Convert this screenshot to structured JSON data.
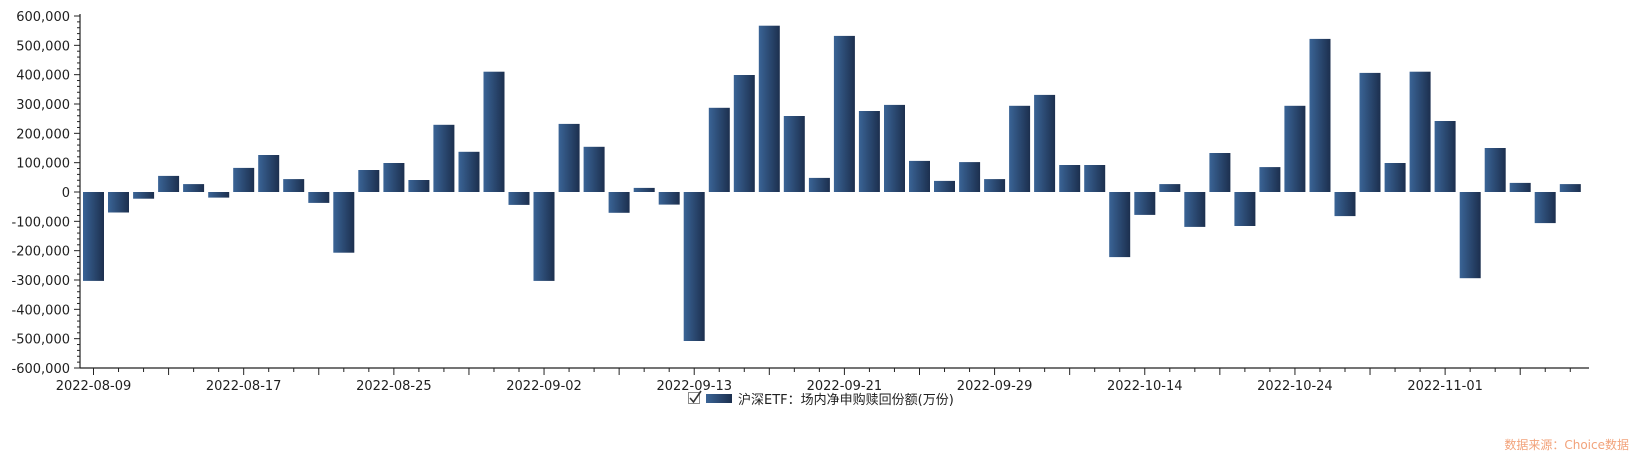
{
  "chart_data": {
    "type": "bar",
    "title": "",
    "xlabel": "",
    "ylabel": "",
    "ylim": [
      -600000,
      600000
    ],
    "yticks": [
      600000,
      500000,
      400000,
      300000,
      200000,
      100000,
      0,
      -100000,
      -200000,
      -300000,
      -400000,
      -500000,
      -600000
    ],
    "ytick_labels": [
      "600,000",
      "500,000",
      "400,000",
      "300,000",
      "200,000",
      "100,000",
      "0",
      "-100,000",
      "-200,000",
      "-300,000",
      "-400,000",
      "-500,000",
      "-600,000"
    ],
    "x_tick_labels": [
      {
        "index": 0,
        "label": "2022-08-09"
      },
      {
        "index": 6,
        "label": "2022-08-17"
      },
      {
        "index": 12,
        "label": "2022-08-25"
      },
      {
        "index": 18,
        "label": "2022-09-02"
      },
      {
        "index": 24,
        "label": "2022-09-13"
      },
      {
        "index": 30,
        "label": "2022-09-21"
      },
      {
        "index": 36,
        "label": "2022-09-29"
      },
      {
        "index": 42,
        "label": "2022-10-14"
      },
      {
        "index": 48,
        "label": "2022-10-24"
      },
      {
        "index": 54,
        "label": "2022-11-01"
      }
    ],
    "grid": false,
    "legend_position": "bottom",
    "series": [
      {
        "name": "沪深ETF：场内净申购赎回份额(万份)",
        "color": "#2b4a74",
        "values": [
          -303000,
          -70000,
          -23000,
          55000,
          27000,
          -19000,
          82000,
          126000,
          44000,
          -37000,
          -207000,
          75000,
          99000,
          41000,
          229000,
          137000,
          410000,
          -44000,
          -303000,
          232000,
          154000,
          -71000,
          14000,
          -43000,
          -508000,
          287000,
          399000,
          567000,
          259000,
          48000,
          532000,
          276000,
          297000,
          106000,
          38000,
          102000,
          44000,
          294000,
          331000,
          92000,
          92000,
          -222000,
          -78000,
          27000,
          -119000,
          133000,
          -116000,
          85000,
          294000,
          522000,
          -82000,
          406000,
          99000,
          410000,
          242000,
          -294000,
          150000,
          31000,
          -106000,
          27000
        ]
      }
    ]
  },
  "legend": {
    "checked": true,
    "label": "沪深ETF：场内净申购赎回份额(万份)"
  },
  "source": "数据来源：Choice数据"
}
